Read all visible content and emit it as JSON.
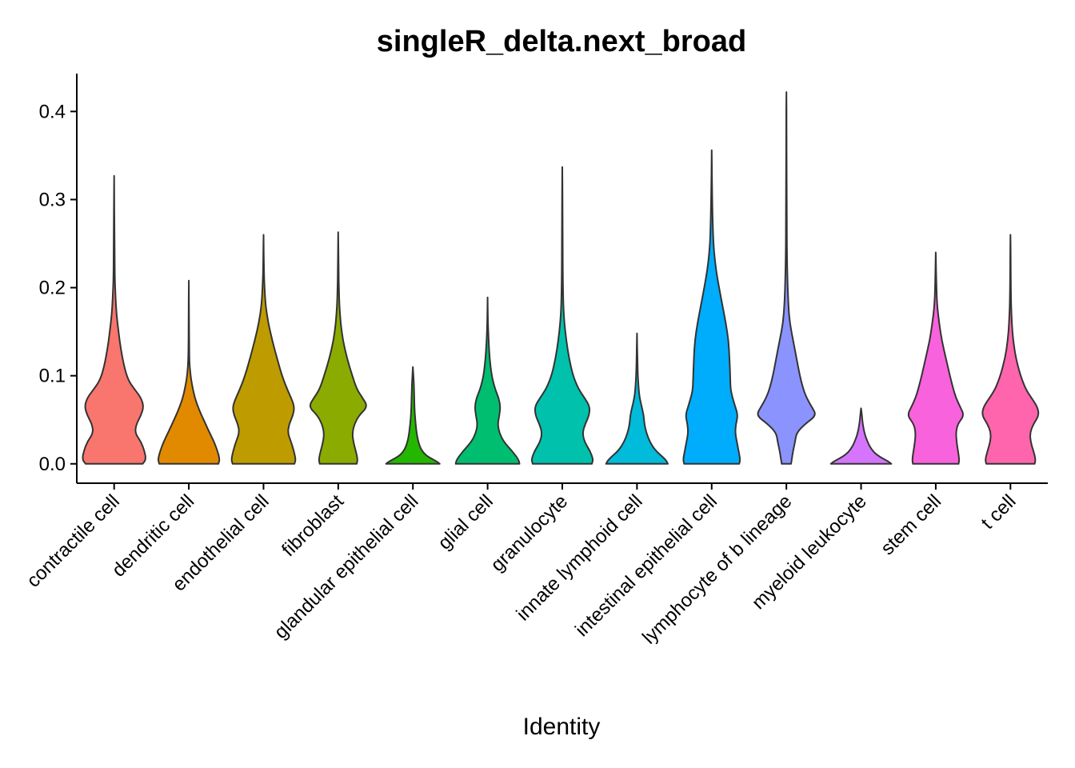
{
  "chart_data": {
    "type": "violin",
    "title": "singleR_delta.next_broad",
    "xlabel": "Identity",
    "ylabel": "",
    "ylim": [
      -0.022,
      0.443
    ],
    "yticks": [
      "0.0",
      "0.1",
      "0.2",
      "0.3",
      "0.4"
    ],
    "ytick_values": [
      0.0,
      0.1,
      0.2,
      0.3,
      0.4
    ],
    "grid": false,
    "legend": "none",
    "categories": [
      "contractile cell",
      "dendritic cell",
      "endothelial cell",
      "fibroblast",
      "glandular epithelial cell",
      "glial cell",
      "granulocyte",
      "innate lymphoid cell",
      "intestinal epithelial cell",
      "lymphocyte of b lineage",
      "myeloid leukocyte",
      "stem cell",
      "t cell"
    ],
    "colors": [
      "#F8766D",
      "#E18A00",
      "#BE9C00",
      "#8CAB00",
      "#24B700",
      "#00BE70",
      "#00C1AB",
      "#00BBDA",
      "#00ACFC",
      "#8B93FF",
      "#D575FE",
      "#F962DD",
      "#FF65AC"
    ],
    "series": [
      {
        "name": "contractile cell",
        "y": [
          0.0,
          0.005,
          0.015,
          0.025,
          0.035,
          0.045,
          0.055,
          0.065,
          0.075,
          0.085,
          0.095,
          0.11,
          0.13,
          0.15,
          0.17,
          0.19,
          0.21,
          0.25,
          0.327
        ],
        "density": [
          0.85,
          0.95,
          0.9,
          0.8,
          0.62,
          0.66,
          0.8,
          0.88,
          0.8,
          0.6,
          0.42,
          0.3,
          0.2,
          0.13,
          0.07,
          0.04,
          0.02,
          0.012,
          0.0
        ]
      },
      {
        "name": "dendritic cell",
        "y": [
          0.0,
          0.005,
          0.015,
          0.025,
          0.035,
          0.045,
          0.055,
          0.065,
          0.075,
          0.085,
          0.095,
          0.105,
          0.115,
          0.13,
          0.16,
          0.208
        ],
        "density": [
          0.88,
          0.92,
          0.85,
          0.75,
          0.62,
          0.5,
          0.38,
          0.27,
          0.18,
          0.12,
          0.07,
          0.04,
          0.02,
          0.012,
          0.008,
          0.0
        ]
      },
      {
        "name": "endothelial cell",
        "y": [
          0.0,
          0.005,
          0.015,
          0.025,
          0.035,
          0.045,
          0.055,
          0.065,
          0.075,
          0.085,
          0.1,
          0.12,
          0.14,
          0.16,
          0.18,
          0.2,
          0.22,
          0.26
        ],
        "density": [
          0.92,
          0.96,
          0.9,
          0.82,
          0.72,
          0.76,
          0.88,
          0.92,
          0.82,
          0.7,
          0.55,
          0.4,
          0.26,
          0.14,
          0.06,
          0.03,
          0.012,
          0.0
        ]
      },
      {
        "name": "fibroblast",
        "y": [
          0.0,
          0.005,
          0.015,
          0.025,
          0.035,
          0.045,
          0.055,
          0.065,
          0.075,
          0.085,
          0.1,
          0.12,
          0.14,
          0.16,
          0.18,
          0.2,
          0.22,
          0.263
        ],
        "density": [
          0.55,
          0.58,
          0.52,
          0.45,
          0.42,
          0.48,
          0.62,
          0.88,
          0.72,
          0.55,
          0.42,
          0.26,
          0.14,
          0.07,
          0.035,
          0.02,
          0.01,
          0.0
        ]
      },
      {
        "name": "glandular epithelial cell",
        "y": [
          0.0,
          0.003,
          0.008,
          0.013,
          0.02,
          0.03,
          0.045,
          0.06,
          0.075,
          0.09,
          0.1,
          0.11
        ],
        "density": [
          0.8,
          0.7,
          0.45,
          0.3,
          0.2,
          0.13,
          0.08,
          0.05,
          0.04,
          0.03,
          0.015,
          0.0
        ]
      },
      {
        "name": "glial cell",
        "y": [
          0.0,
          0.005,
          0.015,
          0.025,
          0.035,
          0.045,
          0.055,
          0.065,
          0.075,
          0.085,
          0.1,
          0.12,
          0.14,
          0.16,
          0.189
        ],
        "density": [
          0.95,
          0.92,
          0.72,
          0.48,
          0.35,
          0.3,
          0.35,
          0.38,
          0.33,
          0.22,
          0.12,
          0.06,
          0.03,
          0.01,
          0.0
        ]
      },
      {
        "name": "granulocyte",
        "y": [
          0.0,
          0.005,
          0.015,
          0.025,
          0.035,
          0.045,
          0.055,
          0.065,
          0.075,
          0.085,
          0.1,
          0.12,
          0.14,
          0.16,
          0.18,
          0.2,
          0.25,
          0.29,
          0.337
        ],
        "density": [
          0.88,
          0.92,
          0.82,
          0.66,
          0.6,
          0.68,
          0.8,
          0.82,
          0.66,
          0.48,
          0.32,
          0.2,
          0.12,
          0.06,
          0.03,
          0.02,
          0.01,
          0.008,
          0.0
        ]
      },
      {
        "name": "innate lymphoid cell",
        "y": [
          0.0,
          0.005,
          0.015,
          0.025,
          0.035,
          0.045,
          0.055,
          0.065,
          0.075,
          0.085,
          0.1,
          0.12,
          0.148
        ],
        "density": [
          0.92,
          0.85,
          0.55,
          0.38,
          0.28,
          0.22,
          0.2,
          0.14,
          0.08,
          0.05,
          0.025,
          0.012,
          0.0
        ]
      },
      {
        "name": "intestinal epithelial cell",
        "y": [
          0.0,
          0.005,
          0.015,
          0.025,
          0.035,
          0.045,
          0.055,
          0.065,
          0.075,
          0.085,
          0.1,
          0.12,
          0.14,
          0.16,
          0.18,
          0.2,
          0.22,
          0.24,
          0.26,
          0.3,
          0.356
        ],
        "density": [
          0.82,
          0.85,
          0.8,
          0.75,
          0.7,
          0.72,
          0.78,
          0.7,
          0.62,
          0.56,
          0.55,
          0.53,
          0.5,
          0.42,
          0.32,
          0.22,
          0.13,
          0.07,
          0.04,
          0.015,
          0.0
        ]
      },
      {
        "name": "lymphocyte of b lineage",
        "y": [
          0.0,
          0.005,
          0.015,
          0.025,
          0.035,
          0.045,
          0.055,
          0.065,
          0.075,
          0.085,
          0.1,
          0.12,
          0.14,
          0.16,
          0.18,
          0.2,
          0.23,
          0.27,
          0.33,
          0.38,
          0.422
        ],
        "density": [
          0.14,
          0.16,
          0.2,
          0.26,
          0.3,
          0.55,
          0.9,
          0.75,
          0.6,
          0.5,
          0.4,
          0.3,
          0.2,
          0.1,
          0.06,
          0.04,
          0.02,
          0.012,
          0.008,
          0.006,
          0.0
        ]
      },
      {
        "name": "myeloid leukocyte",
        "y": [
          0.0,
          0.003,
          0.008,
          0.013,
          0.02,
          0.028,
          0.035,
          0.045,
          0.055,
          0.063
        ],
        "density": [
          0.9,
          0.8,
          0.55,
          0.38,
          0.25,
          0.16,
          0.1,
          0.05,
          0.025,
          0.0
        ]
      },
      {
        "name": "stem cell",
        "y": [
          0.0,
          0.005,
          0.015,
          0.025,
          0.035,
          0.045,
          0.055,
          0.065,
          0.075,
          0.085,
          0.1,
          0.12,
          0.14,
          0.16,
          0.18,
          0.2,
          0.24
        ],
        "density": [
          0.68,
          0.7,
          0.66,
          0.62,
          0.6,
          0.65,
          0.85,
          0.72,
          0.6,
          0.52,
          0.42,
          0.3,
          0.18,
          0.1,
          0.04,
          0.02,
          0.0
        ]
      },
      {
        "name": "t cell",
        "y": [
          0.0,
          0.005,
          0.015,
          0.025,
          0.035,
          0.045,
          0.055,
          0.065,
          0.075,
          0.085,
          0.1,
          0.12,
          0.14,
          0.16,
          0.18,
          0.2,
          0.23,
          0.26
        ],
        "density": [
          0.72,
          0.75,
          0.68,
          0.6,
          0.58,
          0.68,
          0.85,
          0.8,
          0.62,
          0.45,
          0.3,
          0.16,
          0.08,
          0.04,
          0.02,
          0.012,
          0.008,
          0.0
        ]
      }
    ]
  }
}
